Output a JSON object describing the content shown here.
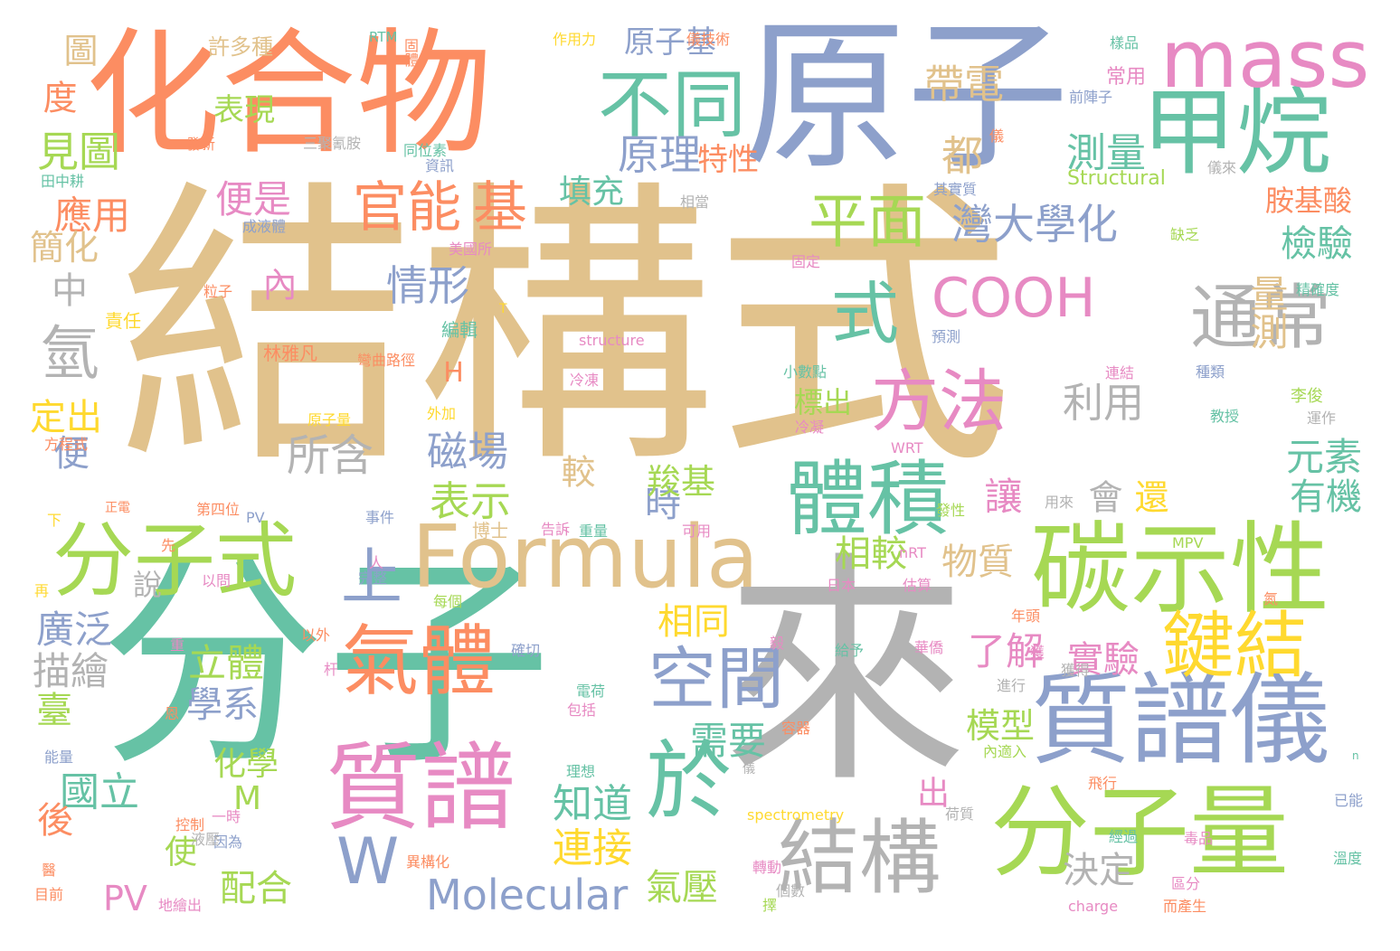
{
  "palette": {
    "tan": "#e1c28c",
    "orange": "#fc8d62",
    "blue": "#8da0cb",
    "green": "#66c2a5",
    "lime": "#a6d854",
    "pink": "#e78ac3",
    "gray": "#b3b3b3",
    "yellow": "#ffd92f"
  },
  "words": [
    {
      "text": "結構式",
      "weight": 100,
      "color": "tan"
    },
    {
      "text": "分子",
      "weight": 72,
      "color": "green"
    },
    {
      "text": "來",
      "weight": 66,
      "color": "gray"
    },
    {
      "text": "原子",
      "weight": 46,
      "color": "blue"
    },
    {
      "text": "化合物",
      "weight": 40,
      "color": "orange"
    },
    {
      "text": "碳示性",
      "weight": 22,
      "color": "lime"
    },
    {
      "text": "質譜儀",
      "weight": 20,
      "color": "blue"
    },
    {
      "text": "分子量",
      "weight": 19,
      "color": "lime"
    },
    {
      "text": "質譜",
      "weight": 17,
      "color": "pink"
    },
    {
      "text": "Formula",
      "weight": 17,
      "color": "tan"
    },
    {
      "text": "甲烷",
      "weight": 16,
      "color": "green"
    },
    {
      "text": "mass",
      "weight": 16,
      "color": "pink"
    },
    {
      "text": "分子式",
      "weight": 15,
      "color": "lime"
    },
    {
      "text": "結構",
      "weight": 15,
      "color": "gray"
    },
    {
      "text": "於",
      "weight": 15,
      "color": "green"
    },
    {
      "text": "體積",
      "weight": 14,
      "color": "green"
    },
    {
      "text": "通常",
      "weight": 14,
      "color": "gray"
    },
    {
      "text": "不同",
      "weight": 13,
      "color": "green"
    },
    {
      "text": "氣體",
      "weight": 13,
      "color": "orange"
    },
    {
      "text": "鍵結",
      "weight": 13,
      "color": "yellow"
    },
    {
      "text": "方法",
      "weight": 12,
      "color": "pink"
    },
    {
      "text": "空間",
      "weight": 12,
      "color": "blue"
    },
    {
      "text": "平面",
      "weight": 12,
      "color": "lime"
    },
    {
      "text": "上",
      "weight": 12,
      "color": "blue"
    },
    {
      "text": "W",
      "weight": 12,
      "color": "blue"
    },
    {
      "text": "式",
      "weight": 11,
      "color": "green"
    },
    {
      "text": "COOH",
      "weight": 11,
      "color": "pink"
    },
    {
      "text": "氫",
      "weight": 10,
      "color": "gray"
    },
    {
      "text": "官能",
      "weight": 9,
      "color": "orange"
    },
    {
      "text": "基",
      "weight": 9,
      "color": "orange"
    },
    {
      "text": "Molecular",
      "weight": 8,
      "color": "blue"
    },
    {
      "text": "帶電",
      "weight": 7,
      "color": "tan"
    },
    {
      "text": "測量",
      "weight": 7,
      "color": "green"
    },
    {
      "text": "原理",
      "weight": 7,
      "color": "blue"
    },
    {
      "text": "都",
      "weight": 7,
      "color": "tan"
    },
    {
      "text": "灣大學化",
      "weight": 7,
      "color": "blue"
    },
    {
      "text": "便是",
      "weight": 7,
      "color": "pink"
    },
    {
      "text": "情形",
      "weight": 7,
      "color": "blue"
    },
    {
      "text": "應用",
      "weight": 7,
      "color": "orange"
    },
    {
      "text": "見圖",
      "weight": 7,
      "color": "lime"
    },
    {
      "text": "磁場",
      "weight": 7,
      "color": "blue"
    },
    {
      "text": "表示",
      "weight": 7,
      "color": "lime"
    },
    {
      "text": "所含",
      "weight": 7,
      "color": "gray"
    },
    {
      "text": "利用",
      "weight": 7,
      "color": "gray"
    },
    {
      "text": "量測",
      "weight": 6,
      "color": "tan"
    },
    {
      "text": "檢驗",
      "weight": 6,
      "color": "green"
    },
    {
      "text": "元素",
      "weight": 6,
      "color": "green"
    },
    {
      "text": "有機",
      "weight": 6,
      "color": "green"
    },
    {
      "text": "相同",
      "weight": 6,
      "color": "yellow"
    },
    {
      "text": "立體",
      "weight": 6,
      "color": "lime"
    },
    {
      "text": "學系",
      "weight": 6,
      "color": "blue"
    },
    {
      "text": "廣泛",
      "weight": 6,
      "color": "blue"
    },
    {
      "text": "描繪",
      "weight": 6,
      "color": "gray"
    },
    {
      "text": "需要",
      "weight": 6,
      "color": "green"
    },
    {
      "text": "知道",
      "weight": 6,
      "color": "green"
    },
    {
      "text": "連接",
      "weight": 6,
      "color": "yellow"
    },
    {
      "text": "國立",
      "weight": 6,
      "color": "green"
    },
    {
      "text": "結構",
      "weight": 2,
      "color": "tan"
    },
    {
      "text": "實驗",
      "weight": 6,
      "color": "pink"
    },
    {
      "text": "了解",
      "weight": 6,
      "color": "pink"
    },
    {
      "text": "讓",
      "weight": 6,
      "color": "pink"
    },
    {
      "text": "物質",
      "weight": 6,
      "color": "tan"
    },
    {
      "text": "相較",
      "weight": 6,
      "color": "lime"
    },
    {
      "text": "時",
      "weight": 6,
      "color": "blue"
    },
    {
      "text": "羧基",
      "weight": 5,
      "color": "lime"
    },
    {
      "text": "較",
      "weight": 5,
      "color": "tan"
    },
    {
      "text": "會",
      "weight": 5,
      "color": "gray"
    },
    {
      "text": "還",
      "weight": 5,
      "color": "yellow"
    },
    {
      "text": "決定",
      "weight": 5,
      "color": "gray"
    },
    {
      "text": "模型",
      "weight": 5,
      "color": "lime"
    },
    {
      "text": "氣壓",
      "weight": 5,
      "color": "lime"
    },
    {
      "text": "配合",
      "weight": 5,
      "color": "lime"
    },
    {
      "text": "化學",
      "weight": 5,
      "color": "lime"
    },
    {
      "text": "使",
      "weight": 5,
      "color": "lime"
    },
    {
      "text": "PV",
      "weight": 5,
      "color": "pink"
    },
    {
      "text": "M",
      "weight": 5,
      "color": "lime"
    },
    {
      "text": "出",
      "weight": 5,
      "color": "pink"
    },
    {
      "text": "後",
      "weight": 5,
      "color": "orange"
    },
    {
      "text": "臺",
      "weight": 5,
      "color": "lime"
    },
    {
      "text": "說",
      "weight": 4,
      "color": "gray"
    },
    {
      "text": "便",
      "weight": 5,
      "color": "blue"
    },
    {
      "text": "定出",
      "weight": 5,
      "color": "yellow"
    },
    {
      "text": "中",
      "weight": 5,
      "color": "gray"
    },
    {
      "text": "簡化",
      "weight": 5,
      "color": "tan"
    },
    {
      "text": "度",
      "weight": 5,
      "color": "orange"
    },
    {
      "text": "圖",
      "weight": 5,
      "color": "tan"
    },
    {
      "text": "表現",
      "weight": 4,
      "color": "lime"
    },
    {
      "text": "內",
      "weight": 5,
      "color": "pink"
    },
    {
      "text": "H",
      "weight": 4,
      "color": "orange"
    },
    {
      "text": "原子基",
      "weight": 4,
      "color": "blue"
    },
    {
      "text": "特性",
      "weight": 4,
      "color": "orange"
    },
    {
      "text": "填充",
      "weight": 4,
      "color": "green"
    },
    {
      "text": "胺基酸",
      "weight": 4,
      "color": "orange"
    },
    {
      "text": "標出",
      "weight": 4,
      "color": "lime"
    },
    {
      "text": "許多種",
      "weight": 3,
      "color": "tan"
    },
    {
      "text": "RTM",
      "weight": 2,
      "color": "green"
    },
    {
      "text": "固體",
      "weight": 2,
      "color": "orange"
    },
    {
      "text": "作用力",
      "weight": 2,
      "color": "yellow"
    },
    {
      "text": "儀技術",
      "weight": 2,
      "color": "orange"
    },
    {
      "text": "樣品",
      "weight": 2,
      "color": "green"
    },
    {
      "text": "常用",
      "weight": 3,
      "color": "pink"
    },
    {
      "text": "前陣子",
      "weight": 2,
      "color": "blue"
    },
    {
      "text": "發新",
      "weight": 2,
      "color": "orange"
    },
    {
      "text": "三聚氰胺",
      "weight": 2,
      "color": "gray"
    },
    {
      "text": "同位素",
      "weight": 2,
      "color": "green"
    },
    {
      "text": "資訊",
      "weight": 2,
      "color": "blue"
    },
    {
      "text": "儀",
      "weight": 2,
      "color": "orange"
    },
    {
      "text": "儀來",
      "weight": 2,
      "color": "gray"
    },
    {
      "text": "田中耕",
      "weight": 2,
      "color": "green"
    },
    {
      "text": "其實質",
      "weight": 2,
      "color": "blue"
    },
    {
      "text": "Structural",
      "weight": 3,
      "color": "lime"
    },
    {
      "text": "相當",
      "weight": 2,
      "color": "gray"
    },
    {
      "text": "成液體",
      "weight": 2,
      "color": "blue"
    },
    {
      "text": "美國所",
      "weight": 2,
      "color": "pink"
    },
    {
      "text": "缺乏",
      "weight": 2,
      "color": "lime"
    },
    {
      "text": "固定",
      "weight": 2,
      "color": "pink"
    },
    {
      "text": "精確度",
      "weight": 2,
      "color": "green"
    },
    {
      "text": "粒子",
      "weight": 2,
      "color": "orange"
    },
    {
      "text": "T",
      "weight": 2,
      "color": "yellow"
    },
    {
      "text": "責任",
      "weight": 2,
      "color": "yellow"
    },
    {
      "text": "編輯",
      "weight": 2,
      "color": "green"
    },
    {
      "text": "structure",
      "weight": 2,
      "color": "pink"
    },
    {
      "text": "預測",
      "weight": 2,
      "color": "blue"
    },
    {
      "text": "林雅凡",
      "weight": 2,
      "color": "orange"
    },
    {
      "text": "彎曲路徑",
      "weight": 2,
      "color": "orange"
    },
    {
      "text": "小數點",
      "weight": 2,
      "color": "green"
    },
    {
      "text": "連結",
      "weight": 2,
      "color": "pink"
    },
    {
      "text": "種類",
      "weight": 2,
      "color": "blue"
    },
    {
      "text": "冷凍",
      "weight": 2,
      "color": "pink"
    },
    {
      "text": "李俊",
      "weight": 2,
      "color": "lime"
    },
    {
      "text": "原子量",
      "weight": 2,
      "color": "yellow"
    },
    {
      "text": "外加",
      "weight": 2,
      "color": "yellow"
    },
    {
      "text": "冷凝",
      "weight": 2,
      "color": "pink"
    },
    {
      "text": "教授",
      "weight": 2,
      "color": "green"
    },
    {
      "text": "運作",
      "weight": 2,
      "color": "gray"
    },
    {
      "text": "方程式",
      "weight": 2,
      "color": "orange"
    },
    {
      "text": "WRT",
      "weight": 2,
      "color": "pink"
    },
    {
      "text": "第四位",
      "weight": 2,
      "color": "orange"
    },
    {
      "text": "PV",
      "weight": 2,
      "color": "blue"
    },
    {
      "text": "發性",
      "weight": 2,
      "color": "lime"
    },
    {
      "text": "用來",
      "weight": 2,
      "color": "gray"
    },
    {
      "text": "正電",
      "weight": 2,
      "color": "orange"
    },
    {
      "text": "下",
      "weight": 2,
      "color": "yellow"
    },
    {
      "text": "事件",
      "weight": 2,
      "color": "blue"
    },
    {
      "text": "告訴",
      "weight": 2,
      "color": "pink"
    },
    {
      "text": "重量",
      "weight": 2,
      "color": "green"
    },
    {
      "text": "可用",
      "weight": 2,
      "color": "pink"
    },
    {
      "text": "博士",
      "weight": 2,
      "color": "tan"
    },
    {
      "text": "nRT",
      "weight": 2,
      "color": "pink"
    },
    {
      "text": "MPV",
      "weight": 2,
      "color": "lime"
    },
    {
      "text": "先",
      "weight": 2,
      "color": "orange"
    },
    {
      "text": "人",
      "weight": 2,
      "color": "pink"
    },
    {
      "text": "完整",
      "weight": 2,
      "color": "blue"
    },
    {
      "text": "以問",
      "weight": 2,
      "color": "pink"
    },
    {
      "text": "日本",
      "weight": 2,
      "color": "pink"
    },
    {
      "text": "估算",
      "weight": 2,
      "color": "pink"
    },
    {
      "text": "氮",
      "weight": 2,
      "color": "orange"
    },
    {
      "text": "再",
      "weight": 2,
      "color": "yellow"
    },
    {
      "text": "每個",
      "weight": 2,
      "color": "lime"
    },
    {
      "text": "年頭",
      "weight": 2,
      "color": "orange"
    },
    {
      "text": "以外",
      "weight": 2,
      "color": "orange"
    },
    {
      "text": "重",
      "weight": 2,
      "color": "pink"
    },
    {
      "text": "確切",
      "weight": 2,
      "color": "blue"
    },
    {
      "text": "毅",
      "weight": 2,
      "color": "pink"
    },
    {
      "text": "給予",
      "weight": 2,
      "color": "green"
    },
    {
      "text": "華僑",
      "weight": 2,
      "color": "pink"
    },
    {
      "text": "獲",
      "weight": 2,
      "color": "pink"
    },
    {
      "text": "獲得",
      "weight": 2,
      "color": "gray"
    },
    {
      "text": "杆",
      "weight": 2,
      "color": "pink"
    },
    {
      "text": "電荷",
      "weight": 2,
      "color": "green"
    },
    {
      "text": "包括",
      "weight": 2,
      "color": "pink"
    },
    {
      "text": "進行",
      "weight": 2,
      "color": "gray"
    },
    {
      "text": "恩",
      "weight": 2,
      "color": "orange"
    },
    {
      "text": "容器",
      "weight": 2,
      "color": "orange"
    },
    {
      "text": "內適入",
      "weight": 2,
      "color": "lime"
    },
    {
      "text": "n",
      "weight": 2,
      "color": "green"
    },
    {
      "text": "能量",
      "weight": 2,
      "color": "blue"
    },
    {
      "text": "理想",
      "weight": 2,
      "color": "green"
    },
    {
      "text": "儀",
      "weight": 2,
      "color": "gray"
    },
    {
      "text": "spectrometry",
      "weight": 2,
      "color": "yellow"
    },
    {
      "text": "飛行",
      "weight": 2,
      "color": "orange"
    },
    {
      "text": "已能",
      "weight": 2,
      "color": "blue"
    },
    {
      "text": "一時",
      "weight": 2,
      "color": "pink"
    },
    {
      "text": "控制",
      "weight": 2,
      "color": "orange"
    },
    {
      "text": "因為",
      "weight": 2,
      "color": "blue"
    },
    {
      "text": "液壓",
      "weight": 2,
      "color": "gray"
    },
    {
      "text": "荷質",
      "weight": 2,
      "color": "gray"
    },
    {
      "text": "經過",
      "weight": 2,
      "color": "green"
    },
    {
      "text": "毒品",
      "weight": 2,
      "color": "pink"
    },
    {
      "text": "溫度",
      "weight": 2,
      "color": "green"
    },
    {
      "text": "醫",
      "weight": 2,
      "color": "orange"
    },
    {
      "text": "異構化",
      "weight": 2,
      "color": "orange"
    },
    {
      "text": "轉動",
      "weight": 2,
      "color": "pink"
    },
    {
      "text": "個數",
      "weight": 2,
      "color": "gray"
    },
    {
      "text": "區分",
      "weight": 2,
      "color": "pink"
    },
    {
      "text": "目前",
      "weight": 2,
      "color": "orange"
    },
    {
      "text": "地繪出",
      "weight": 2,
      "color": "pink"
    },
    {
      "text": "擇",
      "weight": 2,
      "color": "lime"
    },
    {
      "text": "charge",
      "weight": 2,
      "color": "pink"
    },
    {
      "text": "而產生",
      "weight": 2,
      "color": "orange"
    }
  ]
}
